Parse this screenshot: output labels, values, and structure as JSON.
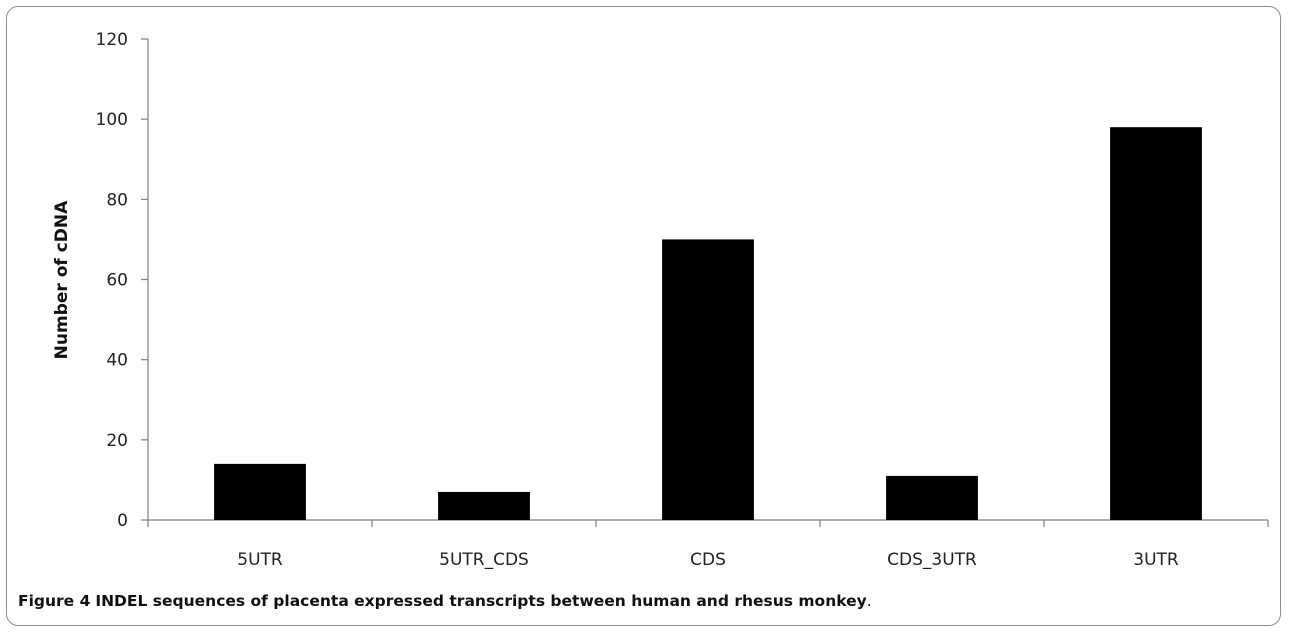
{
  "chart_data": {
    "type": "bar",
    "categories": [
      "5UTR",
      "5UTR_CDS",
      "CDS",
      "CDS_3UTR",
      "3UTR"
    ],
    "values": [
      14,
      7,
      70,
      11,
      98
    ],
    "xlabel": "",
    "ylabel": "Number of cDNA",
    "ylim": [
      0,
      120
    ],
    "yticks": [
      "0",
      "20",
      "40",
      "60",
      "80",
      "100",
      "120"
    ],
    "grid": false,
    "bar_color": "#000000"
  },
  "caption": {
    "number": "Figure 4",
    "text": "INDEL sequences of placenta expressed transcripts between human and rhesus monkey",
    "end": "."
  }
}
